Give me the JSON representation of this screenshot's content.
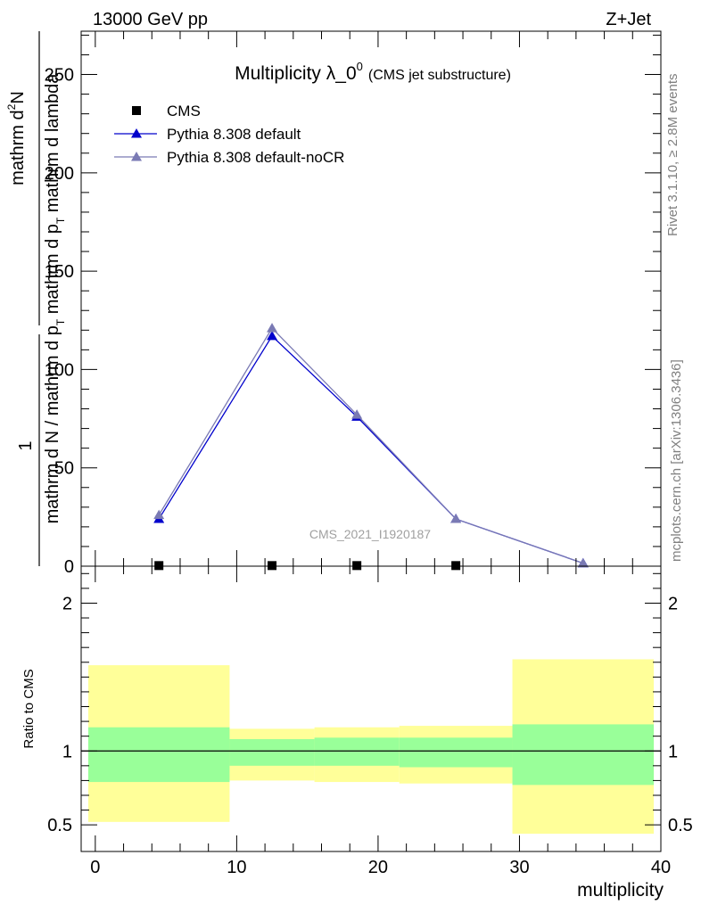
{
  "header": {
    "left": "13000 GeV pp",
    "right": "Z+Jet"
  },
  "side": {
    "rivet": "Rivet 3.1.10, ≥ 2.8M events",
    "mcplots": "mcplots.cern.ch [arXiv:1306.3436]"
  },
  "chart_data": [
    {
      "type": "line",
      "title": "Multiplicity λ_0",
      "title_superscript": "0",
      "subtitle": "(CMS jet substructure)",
      "watermark": "CMS_2021_I1920187",
      "ylabel": {
        "prefix": "1",
        "numerator": "mathrm d",
        "numerator_sup": "2",
        "numerator_tail": "N",
        "denominator_a": "mathrm d N / mathrm d p",
        "denominator_sub1": "T",
        "denominator_b": " mathrm d p",
        "denominator_sub2": "T",
        "denominator_c": " mathrm d lambda"
      },
      "xlim": [
        -1,
        40
      ],
      "ylim": [
        0,
        272
      ],
      "yticks": [
        0,
        50,
        100,
        150,
        200,
        250
      ],
      "ytick_labels": [
        "0",
        "50",
        "100",
        "150",
        "200",
        "250"
      ],
      "legend_position": "top-left",
      "series": [
        {
          "name": "CMS",
          "color": "#000000",
          "marker": "square",
          "x": [
            4.5,
            12.5,
            18.5,
            25.5
          ],
          "y": [
            0.3,
            0.3,
            0.3,
            0.3
          ]
        },
        {
          "name": "Pythia 8.308 default",
          "color": "#0000cc",
          "marker": "triangle",
          "x": [
            4.5,
            12.5,
            18.5,
            25.5,
            34.5
          ],
          "y": [
            24,
            117,
            76,
            24,
            1.5
          ]
        },
        {
          "name": "Pythia 8.308 default-noCR",
          "color": "#7a7ab4",
          "marker": "triangle",
          "x": [
            4.5,
            12.5,
            18.5,
            25.5,
            34.5
          ],
          "y": [
            26,
            121,
            77,
            24,
            1.5
          ]
        }
      ]
    },
    {
      "type": "area",
      "ylabel": "Ratio to CMS",
      "xlabel": "multiplicity",
      "xlim": [
        -1,
        40
      ],
      "ylim": [
        0.32,
        2.25
      ],
      "xticks": [
        0,
        10,
        20,
        30,
        40
      ],
      "xtick_labels": [
        "0",
        "10",
        "20",
        "30",
        "40"
      ],
      "yticks": [
        0.5,
        1,
        2
      ],
      "ytick_labels": [
        "0.5",
        "1",
        "2"
      ],
      "reference_line": 1,
      "band_colors": {
        "outer": "#ffff99",
        "inner": "#99ff99"
      },
      "bins": [
        {
          "x0": -0.5,
          "x1": 9.5,
          "outer": [
            0.52,
            1.58
          ],
          "inner": [
            0.79,
            1.16
          ]
        },
        {
          "x0": 9.5,
          "x1": 15.5,
          "outer": [
            0.8,
            1.15
          ],
          "inner": [
            0.9,
            1.08
          ]
        },
        {
          "x0": 15.5,
          "x1": 21.5,
          "outer": [
            0.79,
            1.16
          ],
          "inner": [
            0.9,
            1.09
          ]
        },
        {
          "x0": 21.5,
          "x1": 29.5,
          "outer": [
            0.78,
            1.17
          ],
          "inner": [
            0.89,
            1.09
          ]
        },
        {
          "x0": 29.5,
          "x1": 39.5,
          "outer": [
            0.44,
            1.62
          ],
          "inner": [
            0.77,
            1.18
          ]
        }
      ]
    }
  ]
}
